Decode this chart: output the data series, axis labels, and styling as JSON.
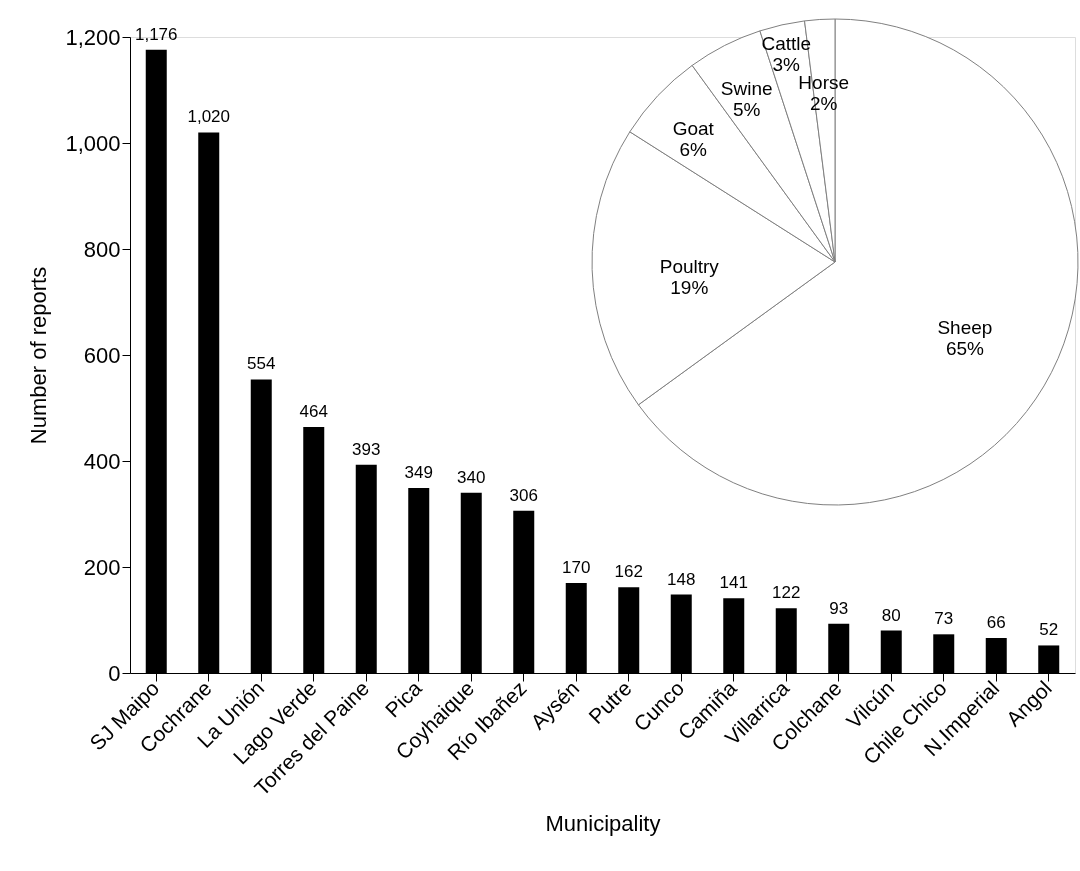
{
  "chart_data": [
    {
      "type": "bar",
      "xlabel": "Municipality",
      "ylabel": "Number of reports",
      "categories": [
        "SJ Maipo",
        "Cochrane",
        "La Unión",
        "Lago Verde",
        "Torres del Paine",
        "Pica",
        "Coyhaique",
        "Río Ibañez",
        "Aysén",
        "Putre",
        "Cunco",
        "Camiña",
        "Villarrica",
        "Colchane",
        "Vilcún",
        "Chile Chico",
        "N.Imperial",
        "Angol"
      ],
      "values": [
        1176,
        1020,
        554,
        464,
        393,
        349,
        340,
        306,
        170,
        162,
        148,
        141,
        122,
        93,
        80,
        73,
        66,
        52
      ],
      "value_labels": [
        "1,176",
        "1,020",
        "554",
        "464",
        "393",
        "349",
        "340",
        "306",
        "170",
        "162",
        "148",
        "141",
        "122",
        "93",
        "80",
        "73",
        "66",
        "52"
      ],
      "color": "#000000",
      "ylim": [
        0,
        1200
      ],
      "yticks": [
        0,
        200,
        400,
        600,
        800,
        {
          "value": 1000,
          "label": "1,000"
        },
        {
          "value": 1200,
          "label": "1,200"
        }
      ],
      "grid": false,
      "legend": false
    },
    {
      "type": "pie",
      "categories": [
        "Sheep",
        "Poultry",
        "Goat",
        "Swine",
        "Cattle",
        "Horse"
      ],
      "values": [
        65,
        19,
        6,
        5,
        3,
        2
      ],
      "value_labels": [
        "65%",
        "19%",
        "6%",
        "5%",
        "3%",
        "2%"
      ],
      "colors": [
        "#ffffff",
        "#ffffff",
        "#ffffff",
        "#ffffff",
        "#ffffff",
        "#ffffff"
      ],
      "legend": false
    }
  ]
}
